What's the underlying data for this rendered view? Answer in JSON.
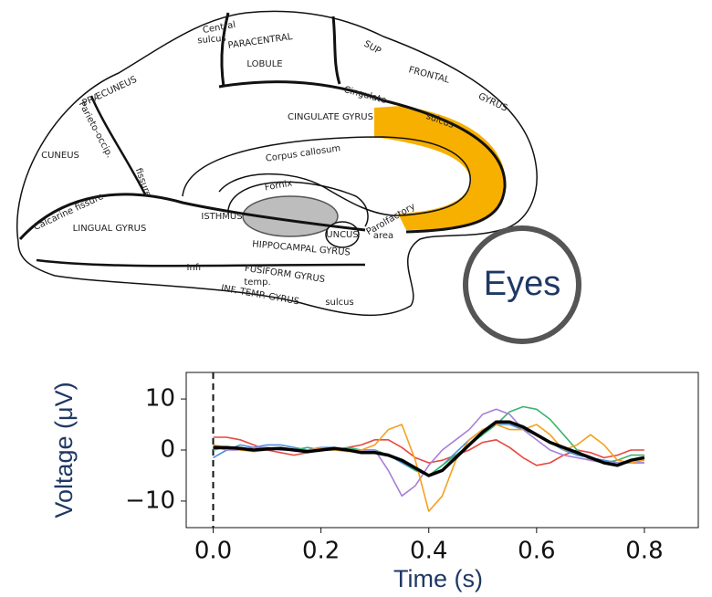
{
  "diagram": {
    "labels": [
      "Central",
      "sulcus",
      "PARACENTRAL",
      "LOBULE",
      "SUP",
      "FRONTAL",
      "GYRUS",
      "PRÆCUNEUS",
      "Parieto-occip.",
      "Cingulate",
      "sulcus",
      "CINGULATE GYRUS",
      "CUNEUS",
      "Corpus callosum",
      "Fornix",
      "Calcarine fissure",
      "fissure",
      "ISTHMUS",
      "LINGUAL GYRUS",
      "UNCUS",
      "Parolfactory",
      "area",
      "HIPPOCAMPAL GYRUS",
      "Infr",
      "FUSIFORM GYRUS",
      "temp.",
      "INF. TEMP. GYRUS",
      "sulcus"
    ]
  },
  "badge": "Eyes",
  "chart_data": {
    "type": "line",
    "xlabel": "Time (s)",
    "ylabel": "Voltage (μV)",
    "x": [
      0,
      0.025,
      0.05,
      0.075,
      0.1,
      0.125,
      0.15,
      0.175,
      0.2,
      0.225,
      0.25,
      0.275,
      0.3,
      0.325,
      0.35,
      0.375,
      0.4,
      0.425,
      0.45,
      0.475,
      0.5,
      0.525,
      0.55,
      0.575,
      0.6,
      0.625,
      0.65,
      0.675,
      0.7,
      0.725,
      0.75,
      0.775,
      0.8
    ],
    "series": [
      {
        "color": "#e8473f",
        "values": [
          2.5,
          2.5,
          2,
          1,
          0,
          -0.5,
          -1,
          -0.5,
          0,
          0,
          0.5,
          1,
          2,
          2,
          0.5,
          -1.5,
          -2.5,
          -2,
          -1,
          0,
          1.5,
          2,
          0.5,
          -1.5,
          -3,
          -2.5,
          -1,
          0,
          -0.5,
          -1.5,
          -1,
          0,
          0
        ]
      },
      {
        "color": "#4a90d9",
        "values": [
          -1.5,
          0,
          1,
          0.5,
          1,
          1,
          0.5,
          0,
          0.5,
          0.5,
          0,
          0,
          0,
          -1,
          -2.5,
          -4,
          -5,
          -3,
          -0.5,
          2,
          4,
          5,
          5,
          4,
          3,
          1.5,
          0,
          -1,
          -1.5,
          -2,
          -2.5,
          -2.5,
          -2.5
        ]
      },
      {
        "color": "#3cb371",
        "values": [
          0,
          0.5,
          0.5,
          0,
          0.5,
          0,
          0,
          0.5,
          0,
          0,
          0.5,
          0,
          0,
          -1,
          -2,
          -4,
          -5,
          -3,
          -1,
          1,
          3,
          5,
          7.5,
          8.5,
          8,
          6,
          3,
          0,
          -2,
          -2.5,
          -2,
          -1,
          -1
        ]
      },
      {
        "color": "#a77fd6",
        "values": [
          0.5,
          0,
          0,
          0.5,
          0.5,
          0,
          0,
          0,
          0.5,
          0,
          0,
          0,
          0,
          -4,
          -9,
          -7,
          -3,
          0,
          2,
          4,
          7,
          8,
          7,
          4,
          2,
          0,
          -1,
          -1.5,
          -2,
          -2.5,
          -2.5,
          -2.5,
          -2.5
        ]
      },
      {
        "color": "#f5a020",
        "values": [
          1,
          0.5,
          0,
          -0.3,
          0,
          0.5,
          0,
          0,
          0.3,
          0,
          -0.3,
          0,
          1,
          4,
          5,
          -2,
          -12,
          -9,
          -2,
          2,
          4,
          5,
          4,
          4,
          5,
          3,
          0,
          1,
          3,
          1,
          -2,
          -2.5,
          -2
        ]
      },
      {
        "color": "#000000",
        "values": [
          0.5,
          0.5,
          0.3,
          0,
          0.2,
          0.3,
          0,
          -0.3,
          0,
          0.3,
          0,
          -0.5,
          -0.5,
          -1,
          -2,
          -3.5,
          -5,
          -4,
          -1.5,
          1,
          3.5,
          5.5,
          5.5,
          4.5,
          3,
          1.5,
          0.5,
          -0.5,
          -1.5,
          -2.5,
          -3,
          -2,
          -1.5
        ]
      }
    ],
    "xlim": [
      -0.05,
      0.9
    ],
    "ylim": [
      -15.2,
      15.2
    ],
    "xticks": [
      {
        "value": 0,
        "label": "0.0"
      },
      0.2,
      0.4,
      0.6,
      0.8
    ],
    "yticks": [
      {
        "value": -10,
        "label": "−10"
      },
      0,
      10
    ],
    "grid": false
  }
}
